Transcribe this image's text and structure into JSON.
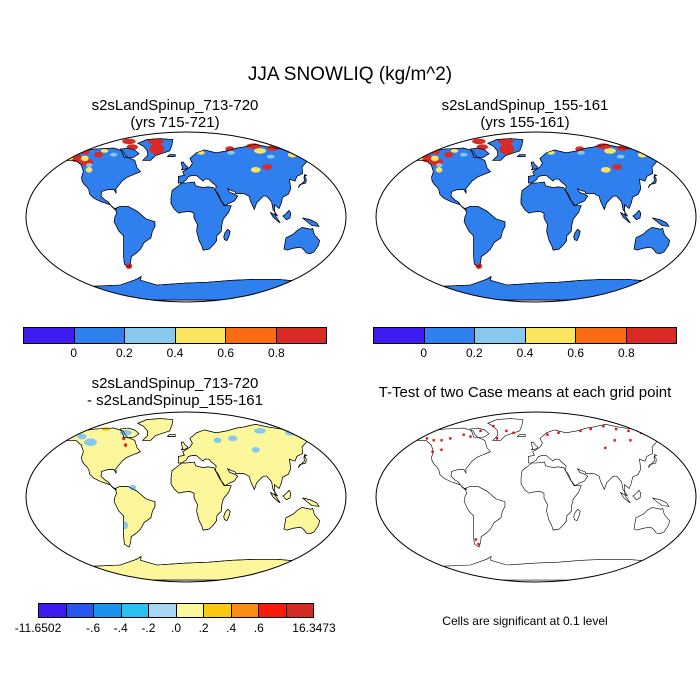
{
  "title": "JJA SNOWLIQ (kg/m^2)",
  "panels": [
    {
      "title_line1": "s2sLandSpinup_713-720",
      "title_line2": "(yrs 715-721)"
    },
    {
      "title_line1": "s2sLandSpinup_155-161",
      "title_line2": "(yrs 155-161)"
    },
    {
      "title_line1": "s2sLandSpinup_713-720",
      "title_line2": "- s2sLandSpinup_155-161"
    },
    {
      "title_line1": "T-Test of two Case means at each grid point"
    }
  ],
  "colorbar_top": {
    "colors": [
      "#3d1cf2",
      "#2f7fef",
      "#87c8ef",
      "#fbe460",
      "#fb6b12",
      "#d92b24"
    ],
    "ticks": [
      "0",
      "0.2",
      "0.4",
      "0.6",
      "0.8"
    ]
  },
  "colorbar_diff": {
    "colors": [
      "#3d1cf2",
      "#2857ee",
      "#1a93f0",
      "#28c1f2",
      "#a6d6f4",
      "#fcf79a",
      "#fbc90e",
      "#fb8d12",
      "#fb1a08",
      "#d62a26"
    ],
    "ticks": [
      "-11.6502",
      "-.6",
      "-.4",
      "-.2",
      ".0",
      ".2",
      ".4",
      ".6",
      "16.3473"
    ]
  },
  "colors": {
    "land": "#2f7fef",
    "diff_land": "#fcf79a",
    "high": "#d92b24",
    "mid": "#fbe460",
    "low_blue": "#87c8ef",
    "sig": "#e01010"
  },
  "significance_note": "Cells are significant at 0.1 level"
}
